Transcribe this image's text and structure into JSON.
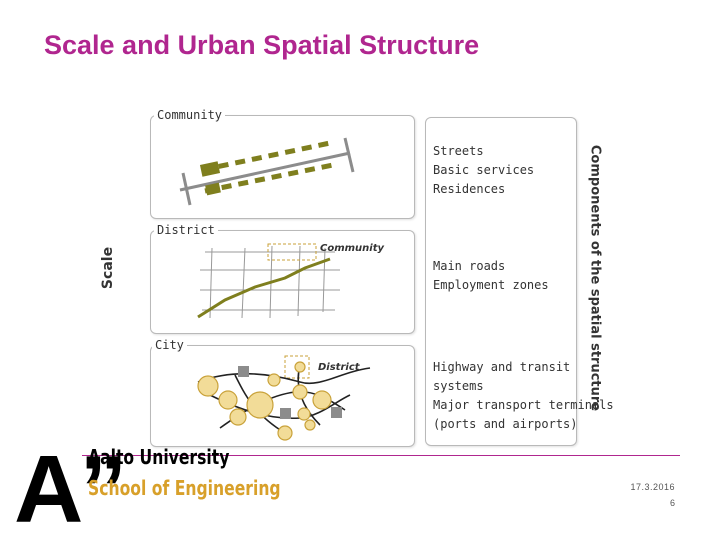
{
  "slide": {
    "title": "Scale and Urban Spatial Structure",
    "date": "17.3.2016",
    "page_number": "6"
  },
  "diagram": {
    "scale_label": "Scale",
    "components_label": "Components of the spatial structure",
    "levels": [
      {
        "name": "Community",
        "components": [
          "Streets",
          "Basic services",
          "Residences"
        ]
      },
      {
        "name": "District",
        "inset_label": "Community",
        "components": [
          "Main roads",
          "Employment zones"
        ]
      },
      {
        "name": "City",
        "inset_label": "District",
        "components": [
          "Highway and transit",
          "systems",
          "Major transport terminals",
          "(ports and airports)"
        ]
      }
    ],
    "colors": {
      "olive": "#7f7f1e",
      "grey": "#8c8c8c",
      "node_fill": "#f2dc98",
      "node_stroke": "#c9a23a",
      "accent": "#b0268f"
    }
  },
  "branding": {
    "logo_letter": "A”",
    "university": "Aalto University",
    "school": "School of Engineering"
  }
}
